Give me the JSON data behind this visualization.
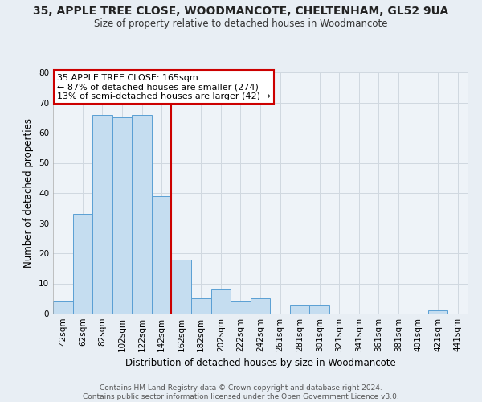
{
  "title": "35, APPLE TREE CLOSE, WOODMANCOTE, CHELTENHAM, GL52 9UA",
  "subtitle": "Size of property relative to detached houses in Woodmancote",
  "xlabel": "Distribution of detached houses by size in Woodmancote",
  "ylabel": "Number of detached properties",
  "bin_labels": [
    "42sqm",
    "62sqm",
    "82sqm",
    "102sqm",
    "122sqm",
    "142sqm",
    "162sqm",
    "182sqm",
    "202sqm",
    "222sqm",
    "242sqm",
    "261sqm",
    "281sqm",
    "301sqm",
    "321sqm",
    "341sqm",
    "361sqm",
    "381sqm",
    "401sqm",
    "421sqm",
    "441sqm"
  ],
  "bar_heights": [
    4,
    33,
    66,
    65,
    66,
    39,
    18,
    5,
    8,
    4,
    5,
    0,
    3,
    3,
    0,
    0,
    0,
    0,
    0,
    1,
    0
  ],
  "bar_color": "#c5ddf0",
  "bar_edge_color": "#5a9fd4",
  "vline_color": "#cc0000",
  "annotation_line1": "35 APPLE TREE CLOSE: 165sqm",
  "annotation_line2": "← 87% of detached houses are smaller (274)",
  "annotation_line3": "13% of semi-detached houses are larger (42) →",
  "annotation_box_color": "#cc0000",
  "ylim": [
    0,
    80
  ],
  "yticks": [
    0,
    10,
    20,
    30,
    40,
    50,
    60,
    70,
    80
  ],
  "footer_text": "Contains HM Land Registry data © Crown copyright and database right 2024.\nContains public sector information licensed under the Open Government Licence v3.0.",
  "bg_color": "#e8eef4",
  "plot_bg_color": "#eef3f8",
  "grid_color": "#d0d8e0"
}
